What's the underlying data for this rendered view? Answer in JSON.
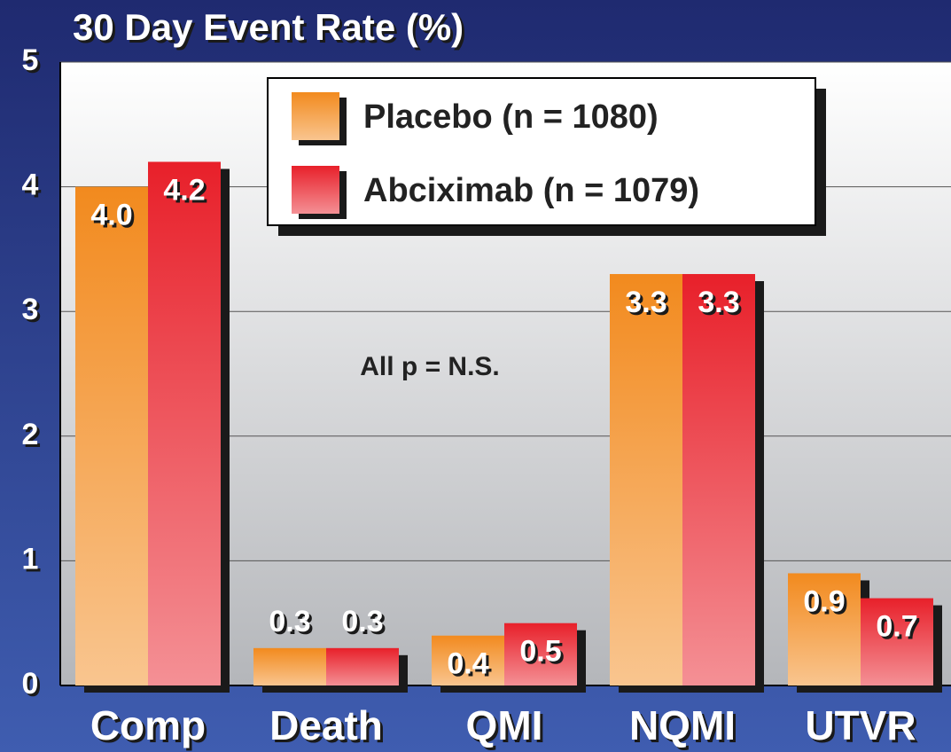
{
  "chart_data": {
    "type": "bar",
    "title": "30 Day Event Rate (%)",
    "annotation": "All p = N.S.",
    "categories": [
      "Comp",
      "Death",
      "QMI",
      "NQMI",
      "UTVR"
    ],
    "series": [
      {
        "name": "Placebo (n = 1080)",
        "color": "#f28a1e",
        "values": [
          4,
          0.3,
          0.4,
          3.3,
          0.9
        ],
        "value_labels": [
          "4.0",
          "0.3",
          "0.4",
          "3.3",
          "0.9"
        ]
      },
      {
        "name": "Abciximab (n = 1079)",
        "color": "#e8202a",
        "values": [
          4.2,
          0.3,
          0.5,
          3.3,
          0.7
        ],
        "value_labels": [
          "4.2",
          "0.3",
          "0.5",
          "3.3",
          "0.7"
        ]
      }
    ],
    "ylim": [
      0,
      5
    ],
    "yticks": [
      0,
      1,
      2,
      3,
      4,
      5
    ],
    "grid": true,
    "legend": "top"
  }
}
